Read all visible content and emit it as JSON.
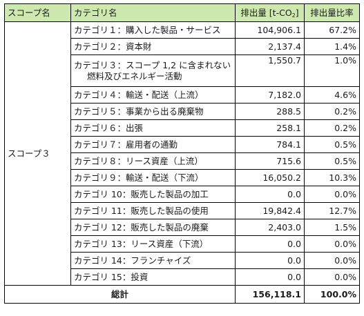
{
  "headers": {
    "scope_name": "スコープ名",
    "category_name": "カテゴリ名",
    "emissions_prefix": "排出量 [t-CO",
    "emissions_sub": "2",
    "emissions_suffix": "]",
    "emissions_ratio": "排出量比率"
  },
  "scope_label": "スコープ３",
  "rows": [
    {
      "category": "カテゴリ１：購入した製品・サービス",
      "emissions": "104,906.1",
      "ratio": "67.2%"
    },
    {
      "category": "カテゴリ２：資本財",
      "emissions": "2,137.4",
      "ratio": "1.4%"
    },
    {
      "category": "カテゴリ３：スコープ 1,2 に含まれない",
      "category_line2": "燃料及びエネルギー活動",
      "emissions": "1,550.7",
      "ratio": "1.0%"
    },
    {
      "category": "カテゴリ４：輸送・配送（上流）",
      "emissions": "7,182.0",
      "ratio": "4.6%"
    },
    {
      "category": "カテゴリ５：事業から出る廃棄物",
      "emissions": "288.5",
      "ratio": "0.2%"
    },
    {
      "category": "カテゴリ６：出張",
      "emissions": "258.1",
      "ratio": "0.2%"
    },
    {
      "category": "カテゴリ７：雇用者の通勤",
      "emissions": "784.1",
      "ratio": "0.5%"
    },
    {
      "category": "カテゴリ８：リース資産（上流）",
      "emissions": "715.6",
      "ratio": "0.5%"
    },
    {
      "category": "カテゴリ９：輸送・配送（下流）",
      "emissions": "16,050.2",
      "ratio": "10.3%"
    },
    {
      "category": "カテゴリ 10：販売した製品の加工",
      "emissions": "0.0",
      "ratio": "0.0%"
    },
    {
      "category": "カテゴリ 11：販売した製品の使用",
      "emissions": "19,842.4",
      "ratio": "12.7%"
    },
    {
      "category": "カテゴリ 12：販売した製品の廃棄",
      "emissions": "2,403.0",
      "ratio": "1.5%"
    },
    {
      "category": "カテゴリ 13：リース資産（下流）",
      "emissions": "0.0",
      "ratio": "0.0%"
    },
    {
      "category": "カテゴリ 14：フランチャイズ",
      "emissions": "0.0",
      "ratio": "0.0%"
    },
    {
      "category": "カテゴリ 15：投資",
      "emissions": "0.0",
      "ratio": "0.0%"
    }
  ],
  "total": {
    "label": "総計",
    "emissions": "156,118.1",
    "ratio": "100.0%"
  },
  "colors": {
    "header_bg": "#cde9b0",
    "border": "#000000"
  }
}
